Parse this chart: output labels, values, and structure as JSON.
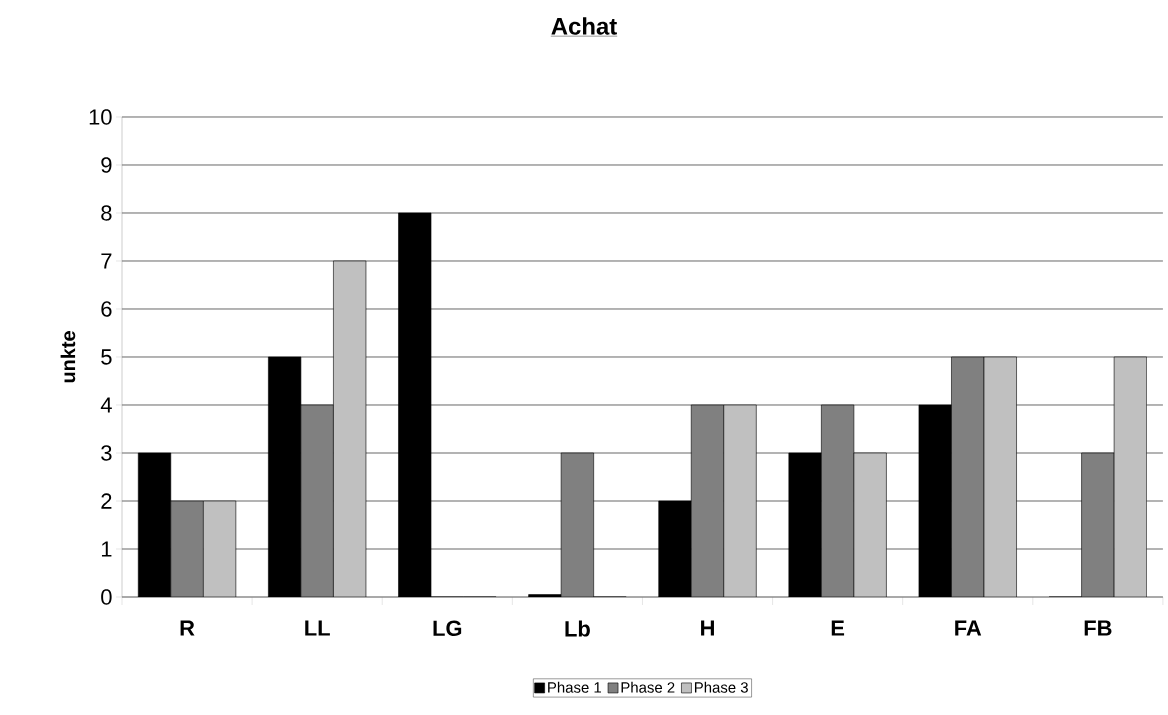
{
  "chart_data": {
    "type": "bar",
    "title": "Achat",
    "ylabel": "unkte",
    "categories": [
      "R",
      "LL",
      "LG",
      "Lb",
      "H",
      "E",
      "FA",
      "FB"
    ],
    "series": [
      {
        "name": "Phase 1",
        "color": "#000000",
        "values": [
          3,
          5,
          8,
          0.05,
          2,
          3,
          4,
          0
        ]
      },
      {
        "name": "Phase 2",
        "color": "#808080",
        "values": [
          2,
          4,
          0,
          3,
          4,
          4,
          5,
          3
        ]
      },
      {
        "name": "Phase 3",
        "color": "#c0c0c0",
        "values": [
          2,
          7,
          0,
          0,
          4,
          3,
          5,
          5
        ]
      }
    ],
    "ylim": [
      0,
      10
    ],
    "yticks": [
      0,
      1,
      2,
      3,
      4,
      5,
      6,
      7,
      8,
      9,
      10
    ],
    "grid": "y",
    "legend": "bottom"
  }
}
